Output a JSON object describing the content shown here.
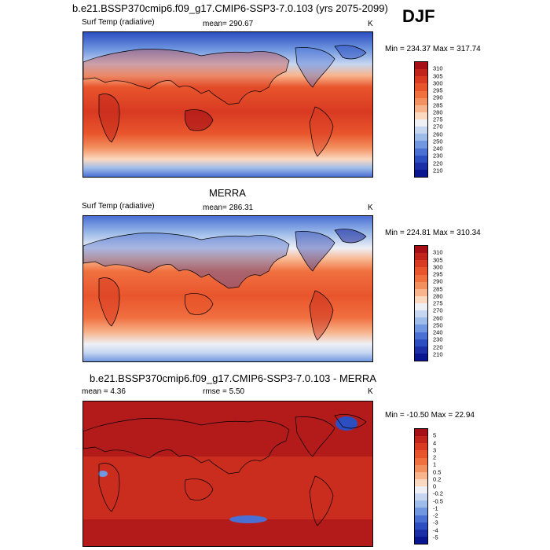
{
  "header": {
    "title": "b.e21.BSSP370cmip6.f09_g17.CMIP6-SSP3-7.0.103 (yrs 2075-2099)",
    "season": "DJF"
  },
  "panels": [
    {
      "id": "model",
      "title": "",
      "variable": "Surf Temp (radiative)",
      "stat_text": "mean= 290.67",
      "units": "K",
      "minmax": "Min = 234.37 Max = 317.74",
      "colorbar_labels": [
        "310",
        "305",
        "300",
        "295",
        "290",
        "285",
        "280",
        "275",
        "270",
        "260",
        "250",
        "240",
        "230",
        "220",
        "210"
      ],
      "colors": [
        "#a50f15",
        "#c0241a",
        "#d83a22",
        "#e8552c",
        "#f07040",
        "#f39060",
        "#f8b48c",
        "#fbd9c0",
        "#eef0f6",
        "#c6d6f1",
        "#9ebcea",
        "#7097e0",
        "#4a70d4",
        "#2c4ec0",
        "#1c2fa6",
        "#0a1690"
      ]
    },
    {
      "id": "obs",
      "title": "MERRA",
      "variable": "Surf Temp (radiative)",
      "stat_text": "mean= 286.31",
      "units": "K",
      "minmax": "Min = 224.81 Max = 310.34",
      "colorbar_labels": [
        "310",
        "305",
        "300",
        "295",
        "290",
        "285",
        "280",
        "275",
        "270",
        "260",
        "250",
        "240",
        "230",
        "220",
        "210"
      ],
      "colors": [
        "#a50f15",
        "#c0241a",
        "#d83a22",
        "#e8552c",
        "#f07040",
        "#f39060",
        "#f8b48c",
        "#fbd9c0",
        "#eef0f6",
        "#c6d6f1",
        "#9ebcea",
        "#7097e0",
        "#4a70d4",
        "#2c4ec0",
        "#1c2fa6",
        "#0a1690"
      ]
    },
    {
      "id": "diff",
      "title": "b.e21.BSSP370cmip6.f09_g17.CMIP6-SSP3-7.0.103 - MERRA",
      "stat_left": "mean =   4.36",
      "stat_center": "rmse =   5.50",
      "units": "K",
      "minmax": "Min = -10.50 Max =  22.94",
      "colorbar_labels": [
        "5",
        "4",
        "3",
        "2",
        "1",
        "0.5",
        "0.2",
        "0",
        "-0.2",
        "-0.5",
        "-1",
        "-2",
        "-3",
        "-4",
        "-5"
      ],
      "colors": [
        "#a50f15",
        "#c0241a",
        "#d83a22",
        "#e8552c",
        "#f07040",
        "#f39060",
        "#f8b48c",
        "#fbd9c0",
        "#eef0f6",
        "#c6d6f1",
        "#9ebcea",
        "#7097e0",
        "#4a70d4",
        "#2c4ec0",
        "#1c2fa6",
        "#0a1690"
      ]
    }
  ]
}
